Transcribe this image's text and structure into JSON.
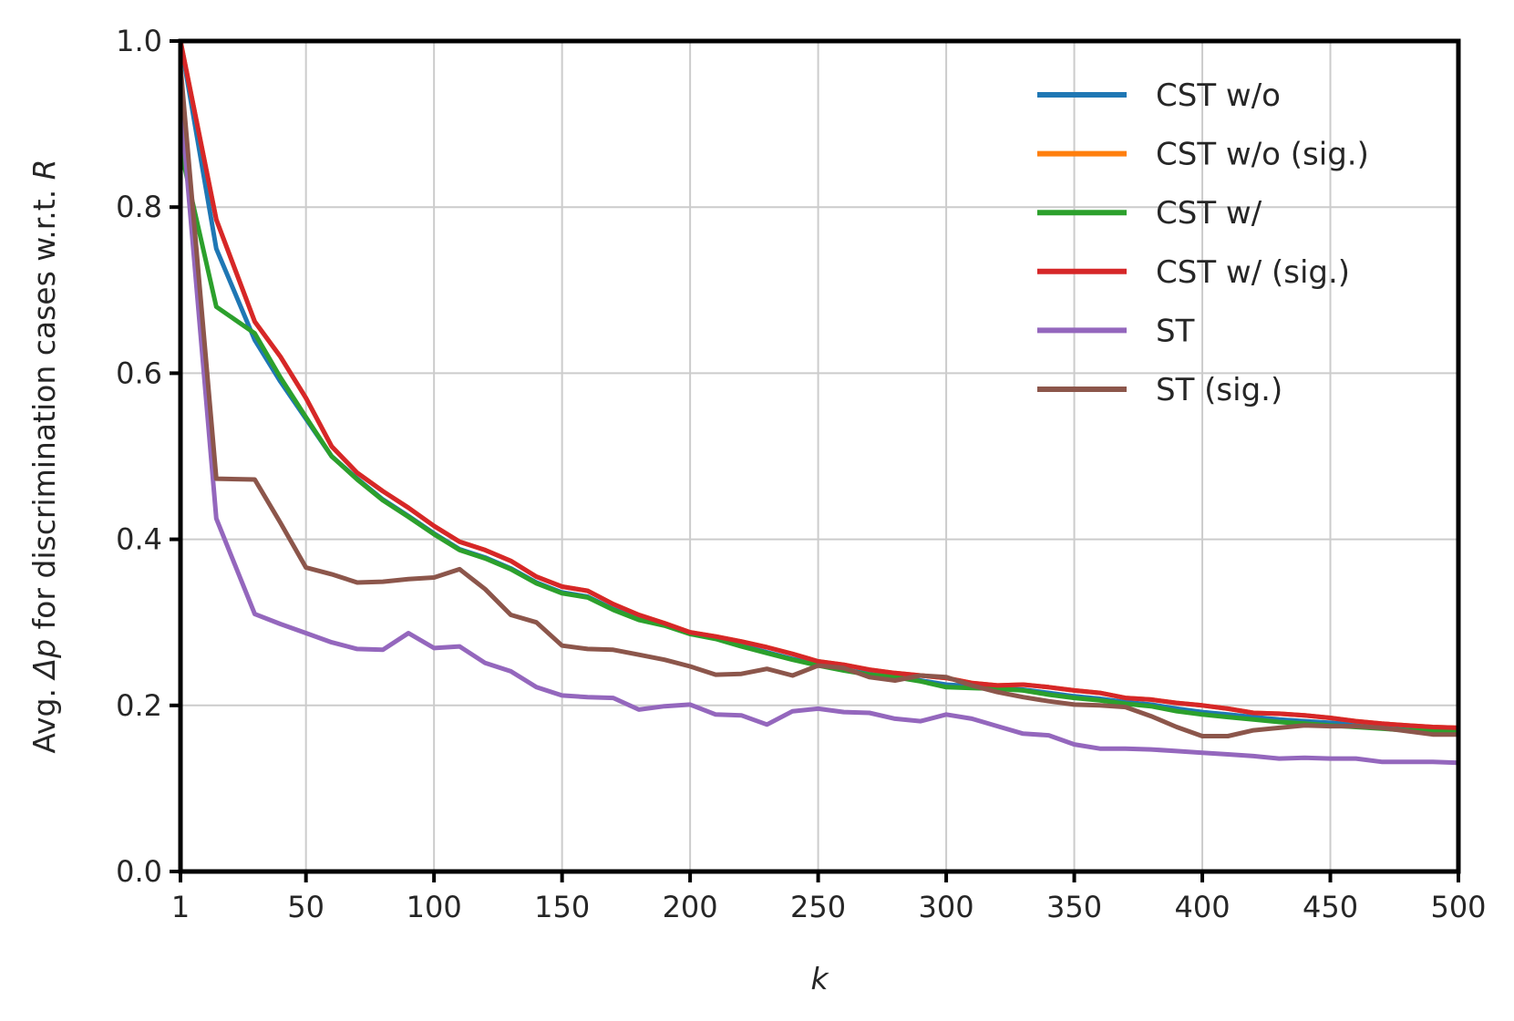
{
  "chart_data": {
    "type": "line",
    "title": "",
    "xlabel": "k",
    "ylabel_prefix": "Avg. ",
    "ylabel_delta": "Δp",
    "ylabel_middle": " for discrimination cases w.r.t. ",
    "ylabel_var": "R",
    "xlim": [
      1,
      500
    ],
    "ylim": [
      0.0,
      1.0
    ],
    "xticks": [
      1,
      50,
      100,
      150,
      200,
      250,
      300,
      350,
      400,
      450,
      500
    ],
    "yticks": [
      0.0,
      0.2,
      0.4,
      0.6,
      0.8,
      1.0
    ],
    "ytick_labels": [
      "0.0",
      "0.2",
      "0.4",
      "0.6",
      "0.8",
      "1.0"
    ],
    "grid": true,
    "legend_position": "top-right",
    "x": [
      1,
      15,
      30,
      40,
      50,
      60,
      70,
      80,
      90,
      100,
      110,
      120,
      130,
      140,
      150,
      160,
      170,
      180,
      190,
      200,
      210,
      220,
      230,
      240,
      250,
      260,
      270,
      280,
      290,
      300,
      310,
      320,
      330,
      340,
      350,
      360,
      370,
      380,
      390,
      400,
      410,
      420,
      430,
      440,
      450,
      460,
      470,
      480,
      490,
      500
    ],
    "series": [
      {
        "name": "CST w/o",
        "color": "#1f77b4",
        "values": [
          1.0,
          0.75,
          0.64,
          0.59,
          0.545,
          0.5,
          0.473,
          0.448,
          0.428,
          0.407,
          0.388,
          0.378,
          0.365,
          0.348,
          0.336,
          0.331,
          0.316,
          0.304,
          0.297,
          0.287,
          0.281,
          0.272,
          0.264,
          0.256,
          0.249,
          0.243,
          0.238,
          0.235,
          0.23,
          0.225,
          0.223,
          0.221,
          0.219,
          0.215,
          0.211,
          0.208,
          0.204,
          0.201,
          0.196,
          0.192,
          0.189,
          0.186,
          0.183,
          0.181,
          0.179,
          0.177,
          0.175,
          0.173,
          0.171,
          0.17
        ]
      },
      {
        "name": "CST w/o (sig.)",
        "color": "#ff7f0e",
        "values": [
          1.0,
          0.785,
          0.662,
          0.62,
          0.57,
          0.512,
          0.48,
          0.458,
          0.438,
          0.416,
          0.397,
          0.387,
          0.374,
          0.355,
          0.343,
          0.338,
          0.322,
          0.309,
          0.299,
          0.288,
          0.283,
          0.277,
          0.27,
          0.262,
          0.253,
          0.249,
          0.243,
          0.239,
          0.236,
          0.233,
          0.227,
          0.224,
          0.225,
          0.222,
          0.218,
          0.215,
          0.209,
          0.207,
          0.203,
          0.2,
          0.196,
          0.191,
          0.19,
          0.188,
          0.185,
          0.181,
          0.178,
          0.176,
          0.174,
          0.173
        ]
      },
      {
        "name": "CST w/",
        "color": "#2ca02c",
        "values": [
          0.87,
          0.68,
          0.648,
          0.595,
          0.547,
          0.5,
          0.472,
          0.447,
          0.427,
          0.406,
          0.387,
          0.377,
          0.364,
          0.347,
          0.335,
          0.33,
          0.315,
          0.303,
          0.296,
          0.286,
          0.28,
          0.271,
          0.263,
          0.255,
          0.248,
          0.242,
          0.237,
          0.234,
          0.229,
          0.222,
          0.221,
          0.22,
          0.218,
          0.213,
          0.209,
          0.206,
          0.202,
          0.199,
          0.193,
          0.189,
          0.186,
          0.183,
          0.18,
          0.178,
          0.176,
          0.174,
          0.172,
          0.17,
          0.169,
          0.168
        ]
      },
      {
        "name": "CST w/ (sig.)",
        "color": "#d62728",
        "values": [
          1.0,
          0.785,
          0.662,
          0.62,
          0.57,
          0.512,
          0.48,
          0.458,
          0.438,
          0.416,
          0.397,
          0.387,
          0.374,
          0.355,
          0.343,
          0.338,
          0.322,
          0.309,
          0.299,
          0.288,
          0.283,
          0.277,
          0.27,
          0.262,
          0.253,
          0.249,
          0.243,
          0.239,
          0.236,
          0.233,
          0.227,
          0.224,
          0.225,
          0.222,
          0.218,
          0.215,
          0.209,
          0.207,
          0.203,
          0.2,
          0.196,
          0.191,
          0.19,
          0.188,
          0.185,
          0.181,
          0.178,
          0.176,
          0.174,
          0.173
        ]
      },
      {
        "name": "ST",
        "color": "#9467bd",
        "values": [
          0.93,
          0.425,
          0.31,
          0.298,
          0.287,
          0.276,
          0.268,
          0.267,
          0.287,
          0.269,
          0.271,
          0.251,
          0.241,
          0.222,
          0.212,
          0.21,
          0.209,
          0.195,
          0.199,
          0.201,
          0.189,
          0.188,
          0.177,
          0.193,
          0.196,
          0.192,
          0.191,
          0.184,
          0.181,
          0.189,
          0.184,
          0.175,
          0.166,
          0.164,
          0.153,
          0.148,
          0.148,
          0.147,
          0.145,
          0.143,
          0.141,
          0.139,
          0.136,
          0.137,
          0.136,
          0.136,
          0.132,
          0.132,
          0.132,
          0.131
        ]
      },
      {
        "name": "ST (sig.)",
        "color": "#8c564b",
        "values": [
          0.97,
          0.473,
          0.472,
          0.42,
          0.366,
          0.358,
          0.348,
          0.349,
          0.352,
          0.354,
          0.364,
          0.34,
          0.309,
          0.3,
          0.272,
          0.268,
          0.267,
          0.261,
          0.255,
          0.247,
          0.237,
          0.238,
          0.244,
          0.236,
          0.248,
          0.245,
          0.234,
          0.23,
          0.236,
          0.234,
          0.224,
          0.216,
          0.21,
          0.205,
          0.201,
          0.2,
          0.198,
          0.187,
          0.174,
          0.163,
          0.163,
          0.17,
          0.173,
          0.176,
          0.175,
          0.175,
          0.173,
          0.169,
          0.165,
          0.165
        ]
      }
    ]
  }
}
